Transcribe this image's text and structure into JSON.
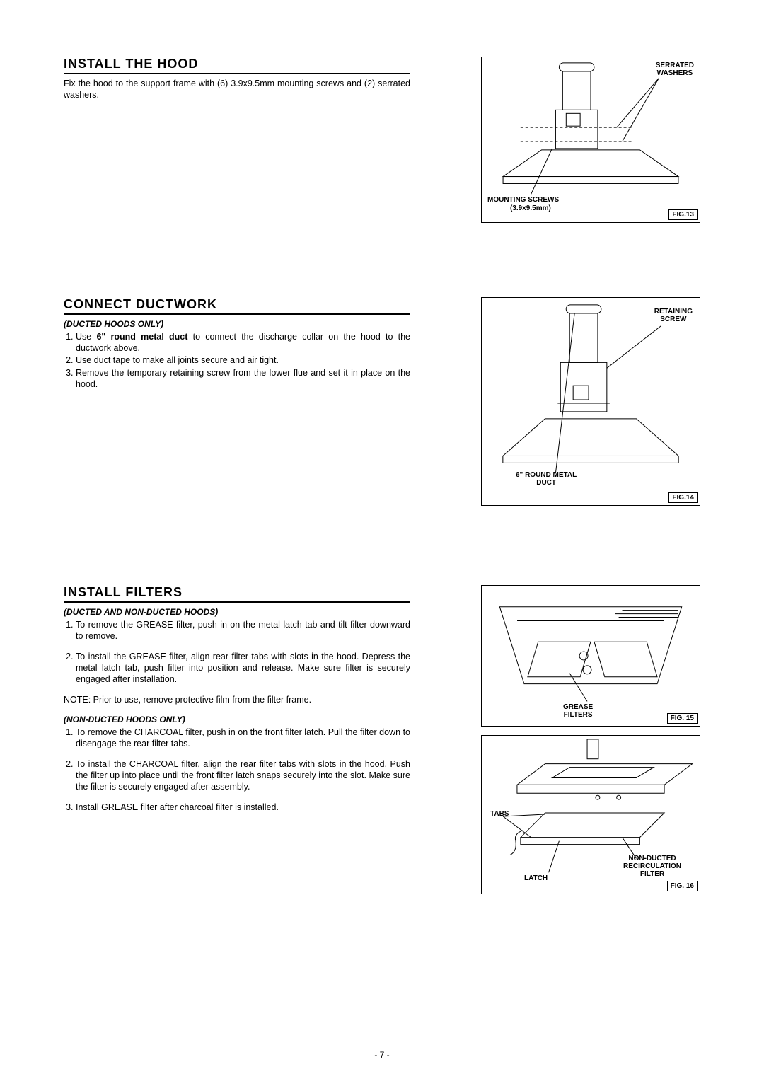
{
  "pageNumber": "- 7 -",
  "section1": {
    "heading": "INSTALL THE HOOD",
    "body": "Fix the hood to the support frame with (6) 3.9x9.5mm mounting screws and (2) serrated washers.",
    "fig": {
      "label": "FIG.13",
      "ann_top": "SERRATED\nWASHERS",
      "ann_bottom_left": "MOUNTING SCREWS",
      "ann_bottom_left2": "(3.9x9.5mm)"
    }
  },
  "section2": {
    "heading": "CONNECT  DUCTWORK",
    "subhead": "(DUCTED HOODS ONLY)",
    "li1_pre": "Use ",
    "li1_bold": "6\" round metal duct",
    "li1_post": " to connect the discharge collar on the hood to the ductwork above.",
    "li2": "Use duct tape to make all joints secure and air tight.",
    "li3": "Remove the temporary retaining screw from the lower flue and set it in place on the hood.",
    "fig": {
      "label": "FIG.14",
      "ann_top": "RETAINING\nSCREW",
      "ann_bottom": "6\" ROUND METAL\nDUCT"
    }
  },
  "section3": {
    "heading": "INSTALL  FILTERS",
    "subheadA": "(DUCTED AND NON-DUCTED HOODS)",
    "a_li1": "To remove the GREASE filter, push in on the metal latch tab and tilt filter downward to remove.",
    "a_li2": "To install the GREASE filter, align rear filter tabs with slots in the hood.  Depress the metal latch tab, push filter into position and release.  Make sure filter is securely engaged after installation.",
    "note": "NOTE: Prior to use, remove protective film from the filter frame.",
    "subheadB": "(NON-DUCTED HOODS ONLY)",
    "b_li1": "To remove the CHARCOAL filter, push in on the front filter latch.  Pull the filter down to disengage the rear filter tabs.",
    "b_li2": "To install the CHARCOAL filter, align the rear filter tabs with slots in the hood.  Push the filter up into place until the front filter latch snaps securely into the slot.  Make sure the filter is securely engaged after assembly.",
    "b_li3": "Install GREASE filter after charcoal filter is installed.",
    "fig15": {
      "label": "FIG.  15",
      "ann": "GREASE\nFILTERS"
    },
    "fig16": {
      "label": "FIG.  16",
      "ann_tabs": "TABS",
      "ann_latch": "LATCH",
      "ann_filter": "NON-DUCTED\nRECIRCULATION\nFILTER"
    }
  }
}
